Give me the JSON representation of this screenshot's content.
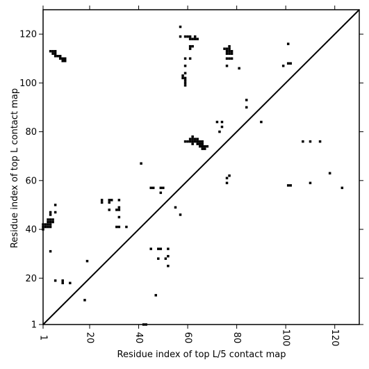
{
  "chart_data": {
    "type": "scatter",
    "title": "",
    "xlabel": "Residue index of top L/5 contact map",
    "ylabel": "Residue index of top L contact map",
    "xlim": [
      1,
      130
    ],
    "ylim": [
      1,
      130
    ],
    "x_ticks": [
      1,
      20,
      40,
      60,
      80,
      100,
      120
    ],
    "y_ticks": [
      1,
      20,
      40,
      60,
      80,
      100,
      120
    ],
    "x_tick_labels": [
      "1",
      "20",
      "40",
      "60",
      "80",
      "100",
      "120"
    ],
    "y_tick_labels": [
      "1",
      "20",
      "40",
      "60",
      "80",
      "100",
      "120"
    ],
    "diagonal": true,
    "marker": "square",
    "grid": false,
    "colors": {
      "contact": "#000000",
      "axis": "#000000",
      "background": "#ffffff"
    },
    "series": [
      {
        "points": [
          [
            1,
            40
          ],
          [
            1,
            41
          ],
          [
            1,
            42
          ],
          [
            2,
            41
          ],
          [
            2,
            42
          ],
          [
            3,
            41
          ],
          [
            3,
            42
          ],
          [
            3,
            43
          ],
          [
            3,
            44
          ],
          [
            4,
            41
          ],
          [
            4,
            42
          ],
          [
            4,
            43
          ],
          [
            4,
            44
          ],
          [
            5,
            43
          ],
          [
            5,
            44
          ],
          [
            4,
            31
          ],
          [
            6,
            19
          ],
          [
            6,
            47
          ],
          [
            6,
            50
          ],
          [
            9,
            18
          ],
          [
            9,
            19
          ],
          [
            12,
            18
          ],
          [
            18,
            11
          ],
          [
            19,
            27
          ],
          [
            4,
            47
          ],
          [
            4,
            46
          ],
          [
            4,
            113
          ],
          [
            5,
            113
          ],
          [
            5,
            112
          ],
          [
            6,
            112
          ],
          [
            6,
            113
          ],
          [
            6,
            111
          ],
          [
            7,
            111
          ],
          [
            8,
            110
          ],
          [
            8,
            111
          ],
          [
            9,
            109
          ],
          [
            9,
            110
          ],
          [
            10,
            109
          ],
          [
            10,
            110
          ],
          [
            25,
            51
          ],
          [
            25,
            52
          ],
          [
            28,
            48
          ],
          [
            28,
            51
          ],
          [
            28,
            52
          ],
          [
            29,
            52
          ],
          [
            31,
            41
          ],
          [
            31,
            48
          ],
          [
            32,
            41
          ],
          [
            32,
            45
          ],
          [
            32,
            48
          ],
          [
            32,
            49
          ],
          [
            32,
            52
          ],
          [
            35,
            41
          ],
          [
            41,
            67
          ],
          [
            42,
            1
          ],
          [
            43,
            1
          ],
          [
            45,
            57
          ],
          [
            46,
            57
          ],
          [
            45,
            32
          ],
          [
            48,
            32
          ],
          [
            47,
            13
          ],
          [
            48,
            28
          ],
          [
            49,
            32
          ],
          [
            49,
            55
          ],
          [
            49,
            57
          ],
          [
            50,
            57
          ],
          [
            51,
            28
          ],
          [
            52,
            32
          ],
          [
            52,
            29
          ],
          [
            52,
            25
          ],
          [
            55,
            49
          ],
          [
            57,
            46
          ],
          [
            57,
            123
          ],
          [
            57,
            119
          ],
          [
            59,
            119
          ],
          [
            60,
            119
          ],
          [
            61,
            119
          ],
          [
            61,
            118
          ],
          [
            62,
            118
          ],
          [
            63,
            118
          ],
          [
            63,
            119
          ],
          [
            64,
            118
          ],
          [
            61,
            115
          ],
          [
            61,
            114
          ],
          [
            62,
            115
          ],
          [
            61,
            110
          ],
          [
            59,
            110
          ],
          [
            59,
            107
          ],
          [
            59,
            104
          ],
          [
            58,
            102
          ],
          [
            58,
            103
          ],
          [
            59,
            101
          ],
          [
            59,
            102
          ],
          [
            59,
            100
          ],
          [
            59,
            99
          ],
          [
            59,
            76
          ],
          [
            60,
            76
          ],
          [
            61,
            76
          ],
          [
            61,
            77
          ],
          [
            62,
            76
          ],
          [
            62,
            77
          ],
          [
            62,
            78
          ],
          [
            62,
            75
          ],
          [
            63,
            76
          ],
          [
            63,
            77
          ],
          [
            64,
            75
          ],
          [
            64,
            76
          ],
          [
            64,
            77
          ],
          [
            65,
            74
          ],
          [
            65,
            75
          ],
          [
            65,
            76
          ],
          [
            66,
            73
          ],
          [
            66,
            74
          ],
          [
            66,
            75
          ],
          [
            66,
            76
          ],
          [
            67,
            73
          ],
          [
            67,
            74
          ],
          [
            68,
            74
          ],
          [
            72,
            84
          ],
          [
            73,
            80
          ],
          [
            74,
            82
          ],
          [
            74,
            84
          ],
          [
            76,
            59
          ],
          [
            76,
            61
          ],
          [
            77,
            62
          ],
          [
            76,
            107
          ],
          [
            76,
            110
          ],
          [
            76,
            112
          ],
          [
            76,
            113
          ],
          [
            76,
            114
          ],
          [
            77,
            110
          ],
          [
            77,
            112
          ],
          [
            77,
            113
          ],
          [
            77,
            114
          ],
          [
            77,
            115
          ],
          [
            78,
            110
          ],
          [
            78,
            112
          ],
          [
            78,
            113
          ],
          [
            75,
            114
          ],
          [
            81,
            106
          ],
          [
            84,
            90
          ],
          [
            84,
            93
          ],
          [
            90,
            84
          ],
          [
            99,
            107
          ],
          [
            101,
            108
          ],
          [
            102,
            108
          ],
          [
            101,
            116
          ],
          [
            101,
            58
          ],
          [
            102,
            58
          ],
          [
            107,
            76
          ],
          [
            110,
            59
          ],
          [
            110,
            76
          ],
          [
            114,
            76
          ],
          [
            118,
            63
          ],
          [
            123,
            57
          ]
        ]
      }
    ]
  }
}
